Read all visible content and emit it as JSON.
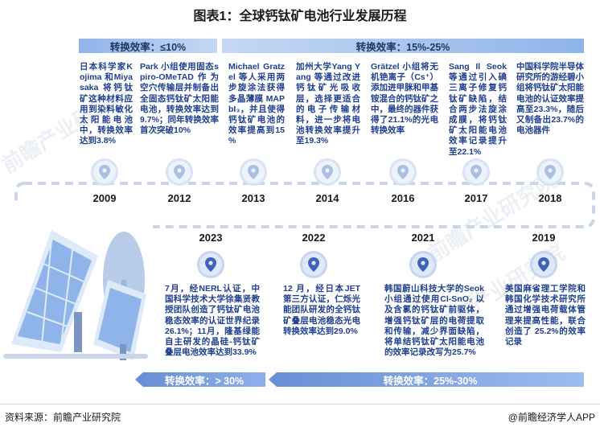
{
  "title": "图表1：全球钙钛矿电池行业发展历程",
  "bands": {
    "top1": "转换效率：≤10%",
    "top2": "转换效率：15%-25%",
    "bot1": "转换效率：> 30%",
    "bot2": "转换效率：25%-30%"
  },
  "top_events": [
    {
      "year": "2009",
      "text": "日本科学家Kojima 和Miyasaka 将钙钛矿这种材料应用到染料敏化太阳能电池中，转换效率达到3.8%"
    },
    {
      "year": "2012",
      "text": "Park 小组使用固态spiro-OMeTAD作为空穴传输层并制备出全固态钙钛矿太阳能电池，转换效率达到 9.7%；同年转换效率首次突破10%"
    },
    {
      "year": "2013",
      "text": "Michael Gratzel 等人采用两步旋涂法获得多晶薄膜 MAPbI₃，并且使得钙钛矿电池的效率提高到15 %"
    },
    {
      "year": "2014",
      "text": "加州大学Yang Yang 等通过改进钙钛矿光吸收层，选择更适合的电子传输材料，进一步将电池转换效率提升至19.3%"
    },
    {
      "year": "2016",
      "text": "Grätzel 小组将无机铯离子（Cs⁺）添加进甲脒和甲基铵混合的钙钛矿之中，最终的器件获得了21.1%的光电转换效率"
    },
    {
      "year": "2017",
      "text": "Sang Il Seok 等通过引入碘三离子修复钙钛矿缺陷，结合两步法旋涂成膜，将钙钛矿太阳能电池效率记录提升至22.1%"
    },
    {
      "year": "2018",
      "text": "中国科学院半导体研究所的游经碧小组将钙钛矿太阳能电池的认证效率提高至23.3%，随后又制备出23.7%的电池器件"
    }
  ],
  "bottom_events": [
    {
      "year": "2023",
      "text": "7月，经NERL认证，中国科学技术大学徐集贤教授团队创造了钙钛矿电池稳态效率的认证世界纪录26.1%；11月，隆基绿能自主研发的晶硅-钙钛矿叠层电池效率达到33.9%"
    },
    {
      "year": "2022",
      "text": "12 月，经日本JET 第三方认证，仁烁光能团队研发的全钙钛矿叠层电池稳态光电转换效率达到29.0%"
    },
    {
      "year": "2021",
      "text": "韩国蔚山科技大学的Seok 小组通过使用Cl-SnO₂ 以及含氯的钙钛矿前驱体，增强钙钛矿层的电荷提取和传输，减少界面缺陷，将单结钙钛矿太阳能电池的效率记录改写为25.7%"
    },
    {
      "year": "2019",
      "text": "美国麻省理工学院和韩国化学技术研究所通过增强电荷载体管理来提高性能，联合创造了 25.2%的效率记录"
    }
  ],
  "footer": {
    "source": "资料来源：前瞻产业研究院",
    "brand": "@前瞻经济学人APP"
  },
  "watermark": "前瞻产业研究院"
}
